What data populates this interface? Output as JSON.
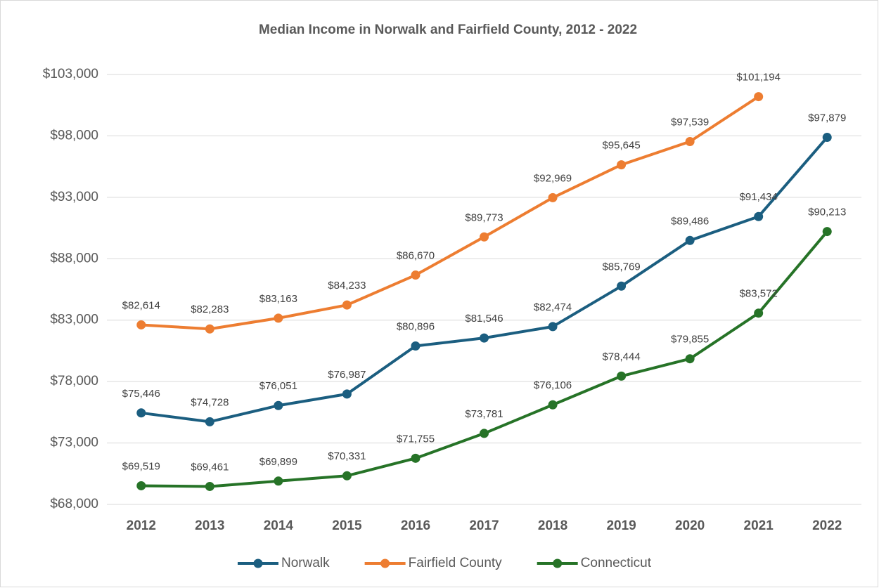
{
  "chart_data": {
    "type": "line",
    "title": "Median Income in Norwalk and Fairfield County, 2012 - 2022",
    "categories": [
      "2012",
      "2013",
      "2014",
      "2015",
      "2016",
      "2017",
      "2018",
      "2019",
      "2020",
      "2021",
      "2022"
    ],
    "series": [
      {
        "name": "Norwalk",
        "color": "#1b5e80",
        "values": [
          75446,
          74728,
          76051,
          76987,
          80896,
          81546,
          82474,
          85769,
          89486,
          91434,
          97879
        ],
        "value_labels": [
          "$75,446",
          "$74,728",
          "$76,051",
          "$76,987",
          "$80,896",
          "$81,546",
          "$82,474",
          "$85,769",
          "$89,486",
          "$91,434",
          "$97,879"
        ]
      },
      {
        "name": "Fairfield County",
        "color": "#ed7d31",
        "values": [
          82614,
          82283,
          83163,
          84233,
          86670,
          89773,
          92969,
          95645,
          97539,
          101194,
          null
        ],
        "value_labels": [
          "$82,614",
          "$82,283",
          "$83,163",
          "$84,233",
          "$86,670",
          "$89,773",
          "$92,969",
          "$95,645",
          "$97,539",
          "$101,194",
          null
        ]
      },
      {
        "name": "Connecticut",
        "color": "#267327",
        "values": [
          69519,
          69461,
          69899,
          70331,
          71755,
          73781,
          76106,
          78444,
          79855,
          83572,
          90213
        ],
        "value_labels": [
          "$69,519",
          "$69,461",
          "$69,899",
          "$70,331",
          "$71,755",
          "$73,781",
          "$76,106",
          "$78,444",
          "$79,855",
          "$83,572",
          "$90,213"
        ]
      }
    ],
    "ylim": [
      68000,
      103000
    ],
    "yticks": [
      {
        "value": 68000,
        "label": "$68,000"
      },
      {
        "value": 73000,
        "label": "$73,000"
      },
      {
        "value": 78000,
        "label": "$78,000"
      },
      {
        "value": 83000,
        "label": "$83,000"
      },
      {
        "value": 88000,
        "label": "$88,000"
      },
      {
        "value": 93000,
        "label": "$93,000"
      },
      {
        "value": 98000,
        "label": "$98,000"
      },
      {
        "value": 103000,
        "label": "$103,000"
      }
    ],
    "grid": true,
    "legend": "bottom"
  }
}
